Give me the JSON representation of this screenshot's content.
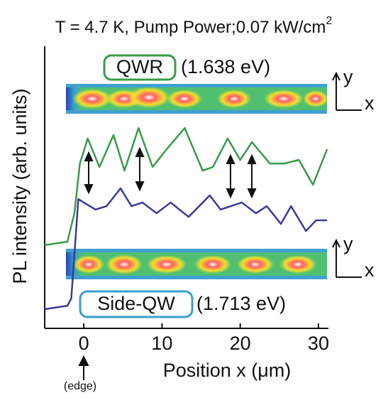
{
  "chart_data": {
    "type": "line",
    "title": "T = 4.7 K, Pump Power;0.07 kW/cm",
    "title_superscript": "2",
    "xlabel": "Position x (μm)",
    "ylabel": "PL intensity (arb. units)",
    "annotations": {
      "qwr": "QWR",
      "qwr_energy": "(1.638 eV)",
      "side": "Side-QW",
      "side_energy": "(1.713 eV)",
      "edge": "(edge)",
      "axis_y": "y",
      "axis_x": "x"
    },
    "xlim": [
      -5,
      32
    ],
    "ylim": [
      0,
      100
    ],
    "xticks": [
      0,
      10,
      20,
      30
    ],
    "series": [
      {
        "name": "QWR",
        "color": "#3a9a4a",
        "x": [
          -5,
          -2.1,
          -1.2,
          -0.5,
          0.5,
          2,
          3.8,
          5.2,
          7,
          8.8,
          10.6,
          12.9,
          15.2,
          16.5,
          18.4,
          20,
          21.5,
          23.8,
          25.6,
          27.5,
          29.3,
          31.1
        ],
        "values": [
          29.5,
          30.7,
          40.8,
          58.4,
          67.3,
          57.2,
          68.5,
          55.9,
          71,
          57.2,
          63.5,
          71,
          55.9,
          57.2,
          67.3,
          59.7,
          66,
          58.4,
          58.4,
          59.7,
          50.9,
          63.5
        ]
      },
      {
        "name": "Side-QW",
        "color": "#3a3a9a",
        "x": [
          -5,
          -2.1,
          -1.6,
          -0.7,
          0,
          1.5,
          2.9,
          4.7,
          6.1,
          7.5,
          9.3,
          11.1,
          13.4,
          16.1,
          17.5,
          20.2,
          22,
          23.4,
          25.2,
          26.5,
          28.4,
          29.7,
          31.1
        ],
        "values": [
          6.8,
          8,
          10.6,
          45.8,
          44.6,
          42.1,
          43.3,
          49.6,
          43.3,
          44.6,
          40.8,
          44.6,
          39.5,
          47.1,
          42.1,
          44.6,
          40.8,
          43.3,
          37,
          43.3,
          34.5,
          38.3,
          38.3
        ]
      }
    ]
  }
}
